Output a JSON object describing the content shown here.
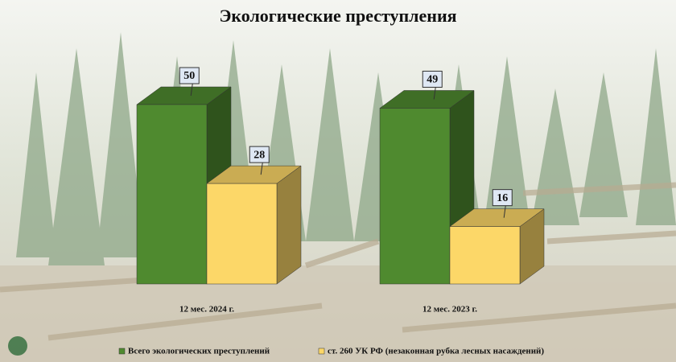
{
  "chart_data": {
    "type": "bar3d",
    "title": "Экологические преступления",
    "categories": [
      "12 мес. 2024 г.",
      "12 мес. 2023 г."
    ],
    "series": [
      {
        "name": "Всего экологических преступлений",
        "color": "#4f8a2f",
        "values": [
          50,
          49
        ]
      },
      {
        "name": "ст. 260 УК РФ (незаконная рубка лесных насаждений)",
        "color": "#fcd768",
        "values": [
          28,
          16
        ]
      }
    ]
  }
}
